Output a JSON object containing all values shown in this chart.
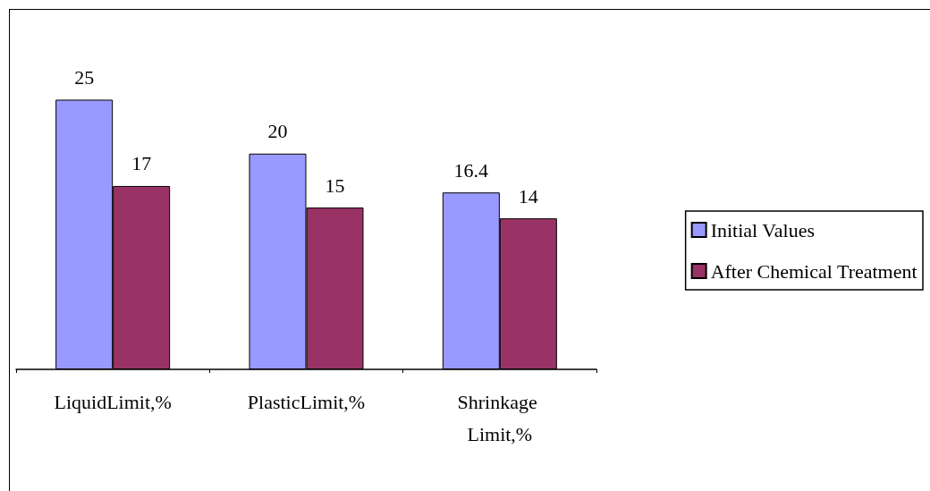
{
  "chart_data": {
    "type": "bar",
    "categories": [
      "LiquidLimit,%",
      "PlasticLimit,%",
      "Shrinkage Limit,%"
    ],
    "series": [
      {
        "name": "Initial Values",
        "color": "#9999ff",
        "values": [
          25,
          20,
          16.4
        ]
      },
      {
        "name": "After Chemical Treatment",
        "color": "#993366",
        "values": [
          17,
          15,
          14
        ]
      }
    ],
    "data_labels": true,
    "legend": "right"
  }
}
